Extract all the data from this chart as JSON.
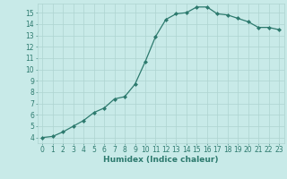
{
  "x": [
    0,
    1,
    2,
    3,
    4,
    5,
    6,
    7,
    8,
    9,
    10,
    11,
    12,
    13,
    14,
    15,
    16,
    17,
    18,
    19,
    20,
    21,
    22,
    23
  ],
  "y": [
    4.0,
    4.1,
    4.5,
    5.0,
    5.5,
    6.2,
    6.6,
    7.4,
    7.6,
    8.7,
    10.7,
    12.9,
    14.4,
    14.9,
    15.0,
    15.5,
    15.5,
    14.9,
    14.8,
    14.5,
    14.2,
    13.7,
    13.7,
    13.5
  ],
  "line_color": "#2d7a6e",
  "marker": "D",
  "markersize": 2,
  "linewidth": 0.9,
  "bg_color": "#c8eae8",
  "grid_color": "#aed4d0",
  "xlabel": "Humidex (Indice chaleur)",
  "xlabel_fontsize": 6.5,
  "tick_fontsize": 5.5,
  "ylim": [
    3.5,
    15.8
  ],
  "xlim": [
    -0.5,
    23.5
  ],
  "yticks": [
    4,
    5,
    6,
    7,
    8,
    9,
    10,
    11,
    12,
    13,
    14,
    15
  ],
  "xticks": [
    0,
    1,
    2,
    3,
    4,
    5,
    6,
    7,
    8,
    9,
    10,
    11,
    12,
    13,
    14,
    15,
    16,
    17,
    18,
    19,
    20,
    21,
    22,
    23
  ],
  "tick_color": "#2d7a6e",
  "label_color": "#2d7a6e"
}
